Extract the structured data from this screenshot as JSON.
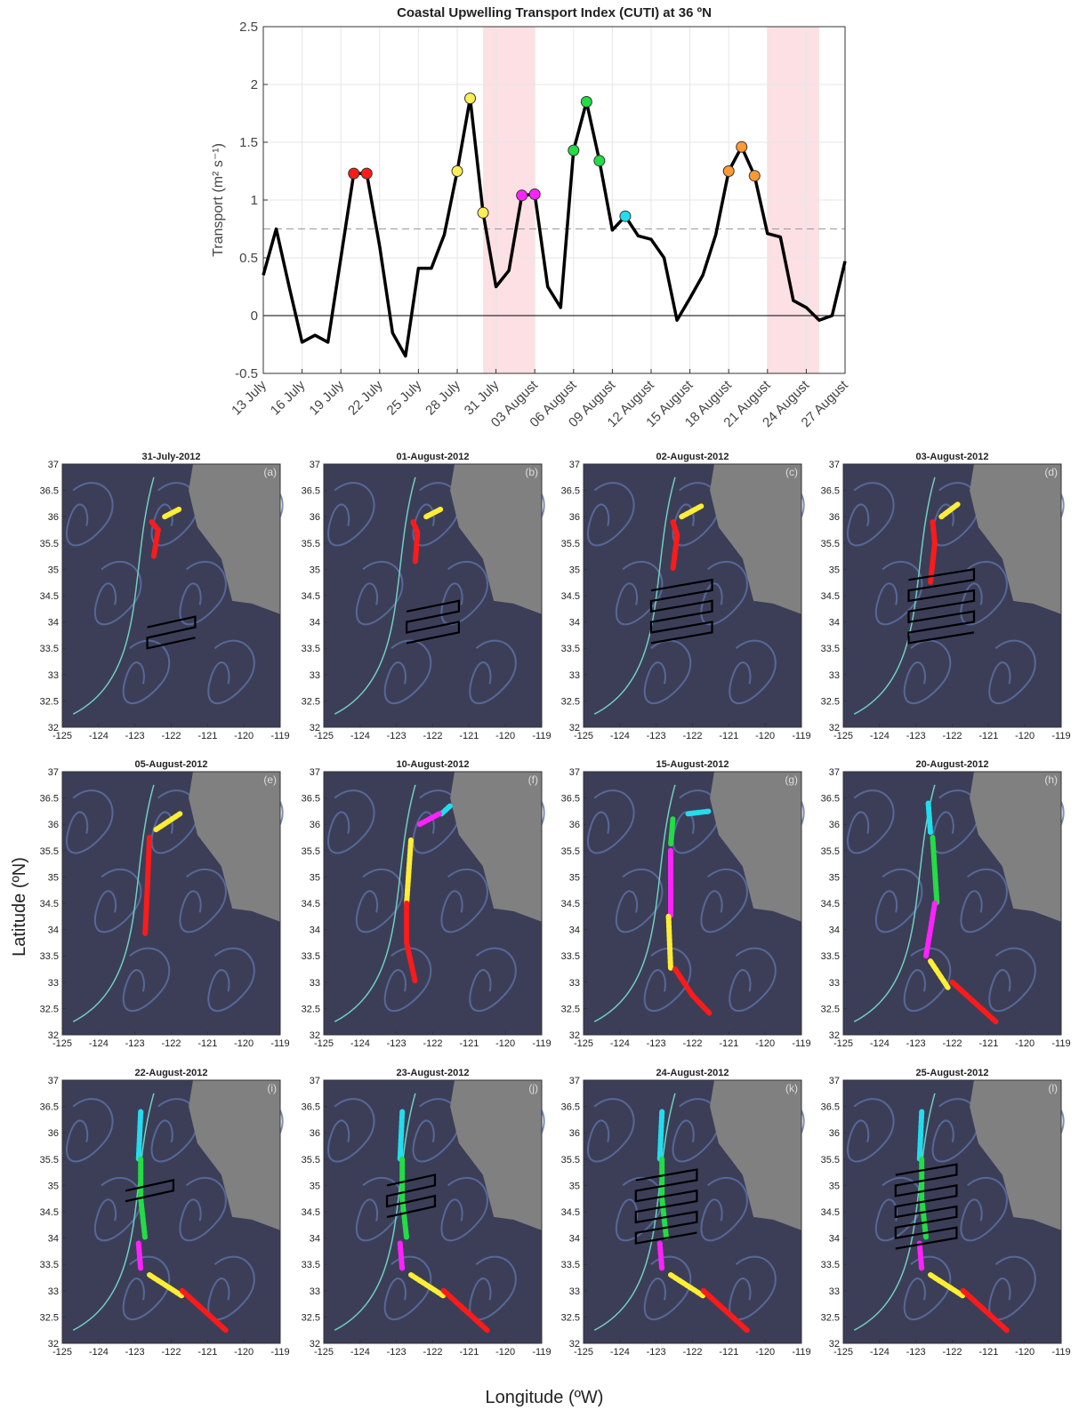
{
  "chart_data": [
    {
      "type": "line",
      "title": "Coastal Upwelling Transport Index (CUTI) at 36 ºN",
      "ylabel": "Transport (m² s⁻¹)",
      "categories": [
        "13 July",
        null,
        null,
        "16 July",
        null,
        null,
        "19 July",
        null,
        null,
        "22 July",
        null,
        null,
        "25 July",
        null,
        null,
        "28 July",
        null,
        null,
        "31 July",
        null,
        null,
        "03 August",
        null,
        null,
        "06 August",
        null,
        null,
        "09 August",
        null,
        null,
        "12 August",
        null,
        null,
        "15 August",
        null,
        null,
        "18 August",
        null,
        null,
        "21 August",
        null,
        null,
        "24 August",
        null,
        null,
        "27 August"
      ],
      "values": [
        0.35,
        0.75,
        0.25,
        -0.23,
        -0.17,
        -0.23,
        0.5,
        1.23,
        1.23,
        0.6,
        -0.15,
        -0.35,
        0.41,
        0.41,
        0.7,
        1.25,
        1.88,
        0.89,
        0.25,
        0.39,
        1.04,
        1.05,
        0.25,
        0.07,
        1.43,
        1.85,
        1.34,
        0.74,
        0.86,
        0.69,
        0.66,
        0.5,
        -0.04,
        0.15,
        0.35,
        0.7,
        1.25,
        1.46,
        1.21,
        0.71,
        0.68,
        0.13,
        0.07,
        -0.04,
        0.0,
        0.47
      ],
      "color": "#000000",
      "marker_colors": [
        null,
        null,
        null,
        null,
        null,
        null,
        null,
        "#ff1a1a",
        "#ff1a1a",
        null,
        null,
        null,
        null,
        null,
        null,
        "#ffee55",
        "#ffee55",
        "#ffee55",
        null,
        null,
        "#ff22ff",
        "#ff22ff",
        null,
        null,
        "#22dd44",
        "#22dd44",
        "#22dd44",
        null,
        "#22ddee",
        null,
        null,
        null,
        null,
        null,
        null,
        null,
        "#ff9933",
        "#ff9933",
        "#ff9933",
        null,
        null,
        null,
        null,
        null,
        null,
        null
      ],
      "shaded_spans": [
        [
          17,
          21
        ],
        [
          39,
          43
        ]
      ],
      "shade_color": "#fde0e3",
      "reference_lines": [
        {
          "value": 0,
          "style": "solid"
        },
        {
          "value": 0.75,
          "style": "dashed"
        }
      ],
      "ylim": [
        -0.5,
        2.5
      ],
      "yticks": [
        -0.5,
        0,
        0.5,
        1,
        1.5,
        2,
        2.5
      ],
      "grid": true
    },
    {
      "type": "map",
      "xlabel": "Longitude (ºW)",
      "ylabel": "Latitude (ºN)",
      "xlim": [
        -125,
        -119
      ],
      "xticks": [
        -125,
        -124,
        -123,
        -122,
        -121,
        -120,
        -119
      ],
      "ylim": [
        32,
        37
      ],
      "yticks": [
        32,
        32.5,
        33,
        33.5,
        34,
        34.5,
        35,
        35.5,
        36,
        36.5,
        37
      ],
      "panels": [
        {
          "title": "31-July-2012",
          "label": "(a)"
        },
        {
          "title": "01-August-2012",
          "label": "(b)"
        },
        {
          "title": "02-August-2012",
          "label": "(c)"
        },
        {
          "title": "03-August-2012",
          "label": "(d)"
        },
        {
          "title": "05-August-2012",
          "label": "(e)"
        },
        {
          "title": "10-August-2012",
          "label": "(f)"
        },
        {
          "title": "15-August-2012",
          "label": "(g)"
        },
        {
          "title": "20-August-2012",
          "label": "(h)"
        },
        {
          "title": "22-August-2012",
          "label": "(i)"
        },
        {
          "title": "23-August-2012",
          "label": "(j)"
        },
        {
          "title": "24-August-2012",
          "label": "(k)"
        },
        {
          "title": "25-August-2012",
          "label": "(l)"
        }
      ]
    }
  ]
}
